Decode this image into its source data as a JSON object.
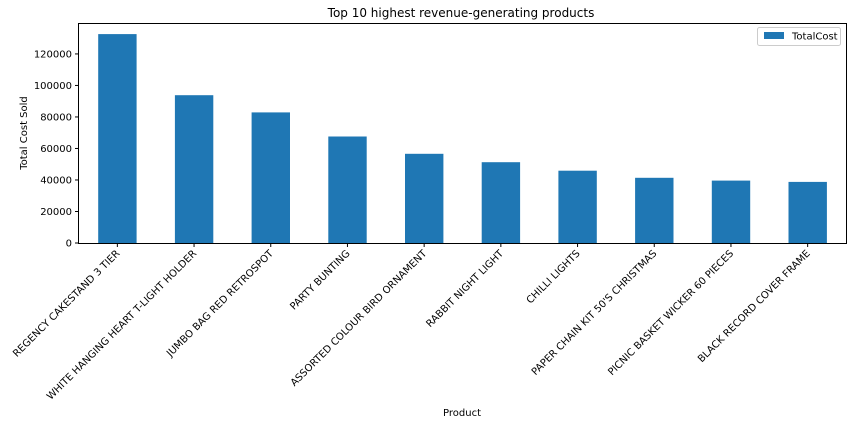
{
  "chart_data": {
    "type": "bar",
    "title": "Top 10 highest revenue-generating products",
    "xlabel": "Product",
    "ylabel": "Total Cost Sold",
    "categories": [
      "REGENCY CAKESTAND 3 TIER",
      "WHITE HANGING HEART T-LIGHT HOLDER",
      "JUMBO BAG RED RETROSPOT",
      "PARTY BUNTING",
      "ASSORTED COLOUR BIRD ORNAMENT",
      "RABBIT NIGHT LIGHT",
      "CHILLI LIGHTS",
      "PAPER CHAIN KIT 50'S CHRISTMAS",
      "PICNIC BASKET WICKER 60 PIECES",
      "BLACK RECORD COVER FRAME"
    ],
    "series": [
      {
        "name": "TotalCost",
        "values": [
          132600,
          93800,
          82900,
          67600,
          56600,
          51300,
          45900,
          41400,
          39600,
          38800
        ],
        "color": "#1f77b4"
      }
    ],
    "ylim": [
      0,
      139000
    ],
    "yticks": [
      0,
      20000,
      40000,
      60000,
      80000,
      100000,
      120000
    ],
    "ytick_labels": [
      "0",
      "20000",
      "40000",
      "60000",
      "80000",
      "100000",
      "120000"
    ],
    "grid": false,
    "legend_position": "upper right"
  }
}
